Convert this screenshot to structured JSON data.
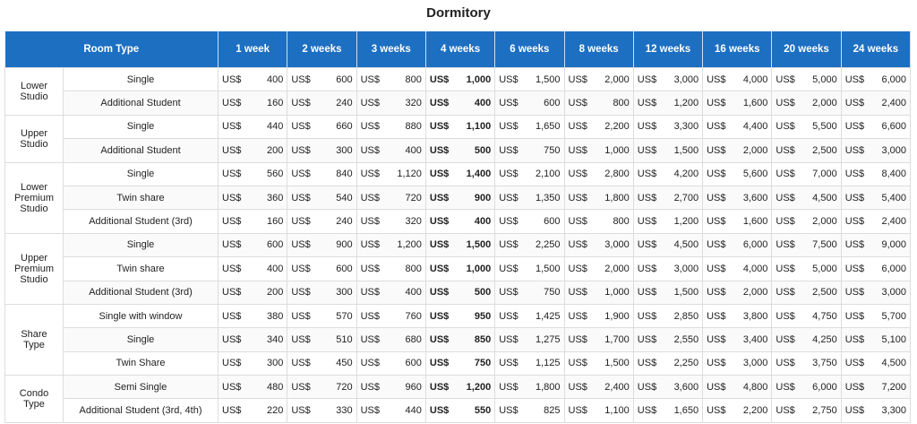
{
  "title": "Dormitory",
  "currency": "US$",
  "header": {
    "room_type": "Room Type",
    "weeks": [
      "1 week",
      "2 weeks",
      "3 weeks",
      "4 weeks",
      "6 weeks",
      "8 weeks",
      "12 weeks",
      "16 weeks",
      "20 weeks",
      "24 weeks"
    ]
  },
  "groups": [
    {
      "label": "Lower Studio",
      "rows": [
        {
          "type": "Single",
          "prices": [
            "400",
            "600",
            "800",
            "1,000",
            "1,500",
            "2,000",
            "3,000",
            "4,000",
            "5,000",
            "6,000"
          ]
        },
        {
          "type": "Additional Student",
          "prices": [
            "160",
            "240",
            "320",
            "400",
            "600",
            "800",
            "1,200",
            "1,600",
            "2,000",
            "2,400"
          ]
        }
      ]
    },
    {
      "label": "Upper Studio",
      "rows": [
        {
          "type": "Single",
          "prices": [
            "440",
            "660",
            "880",
            "1,100",
            "1,650",
            "2,200",
            "3,300",
            "4,400",
            "5,500",
            "6,600"
          ]
        },
        {
          "type": "Additional Student",
          "prices": [
            "200",
            "300",
            "400",
            "500",
            "750",
            "1,000",
            "1,500",
            "2,000",
            "2,500",
            "3,000"
          ]
        }
      ]
    },
    {
      "label": "Lower Premium Studio",
      "rows": [
        {
          "type": "Single",
          "prices": [
            "560",
            "840",
            "1,120",
            "1,400",
            "2,100",
            "2,800",
            "4,200",
            "5,600",
            "7,000",
            "8,400"
          ]
        },
        {
          "type": "Twin share",
          "prices": [
            "360",
            "540",
            "720",
            "900",
            "1,350",
            "1,800",
            "2,700",
            "3,600",
            "4,500",
            "5,400"
          ]
        },
        {
          "type": "Additional Student (3rd)",
          "prices": [
            "160",
            "240",
            "320",
            "400",
            "600",
            "800",
            "1,200",
            "1,600",
            "2,000",
            "2,400"
          ]
        }
      ]
    },
    {
      "label": "Upper Premium Studio",
      "rows": [
        {
          "type": "Single",
          "prices": [
            "600",
            "900",
            "1,200",
            "1,500",
            "2,250",
            "3,000",
            "4,500",
            "6,000",
            "7,500",
            "9,000"
          ]
        },
        {
          "type": "Twin share",
          "prices": [
            "400",
            "600",
            "800",
            "1,000",
            "1,500",
            "2,000",
            "3,000",
            "4,000",
            "5,000",
            "6,000"
          ]
        },
        {
          "type": "Additional Student (3rd)",
          "prices": [
            "200",
            "300",
            "400",
            "500",
            "750",
            "1,000",
            "1,500",
            "2,000",
            "2,500",
            "3,000"
          ]
        }
      ]
    },
    {
      "label": "Share Type",
      "rows": [
        {
          "type": "Single with window",
          "prices": [
            "380",
            "570",
            "760",
            "950",
            "1,425",
            "1,900",
            "2,850",
            "3,800",
            "4,750",
            "5,700"
          ]
        },
        {
          "type": "Single",
          "prices": [
            "340",
            "510",
            "680",
            "850",
            "1,275",
            "1,700",
            "2,550",
            "3,400",
            "4,250",
            "5,100"
          ]
        },
        {
          "type": "Twin Share",
          "prices": [
            "300",
            "450",
            "600",
            "750",
            "1,125",
            "1,500",
            "2,250",
            "3,000",
            "3,750",
            "4,500"
          ]
        }
      ]
    },
    {
      "label": "Condo Type",
      "rows": [
        {
          "type": "Semi Single",
          "prices": [
            "480",
            "720",
            "960",
            "1,200",
            "1,800",
            "2,400",
            "3,600",
            "4,800",
            "6,000",
            "7,200"
          ]
        },
        {
          "type": "Additional Student (3rd, 4th)",
          "prices": [
            "220",
            "330",
            "440",
            "550",
            "825",
            "1,100",
            "1,650",
            "2,200",
            "2,750",
            "3,300"
          ]
        }
      ]
    }
  ]
}
